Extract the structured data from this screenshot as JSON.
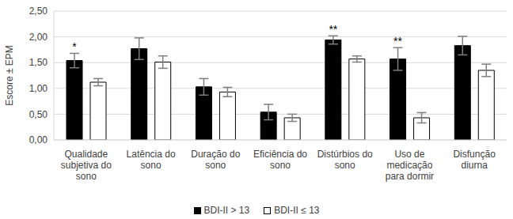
{
  "chart_data": {
    "type": "bar",
    "y_label": "Escore ± EPM",
    "categories": [
      "Qualidade subjetiva do sono",
      "Latência do sono",
      "Duração do sono",
      "Eficiência do sono",
      "Distúrbios do sono",
      "Uso de medicação para dormir",
      "Disfunção diurna"
    ],
    "series": [
      {
        "name": "BDI-II > 13",
        "color": "#000000",
        "values": [
          1.54,
          1.77,
          1.03,
          0.54,
          1.94,
          1.57,
          1.83
        ],
        "errors": [
          0.14,
          0.21,
          0.16,
          0.15,
          0.08,
          0.22,
          0.18
        ]
      },
      {
        "name": "BDI-II ≤ 13",
        "color": "#ffffff",
        "values": [
          1.12,
          1.51,
          0.93,
          0.43,
          1.57,
          0.43,
          1.35
        ],
        "errors": [
          0.07,
          0.12,
          0.09,
          0.07,
          0.06,
          0.1,
          0.12
        ]
      }
    ],
    "annotations": [
      {
        "category": "Qualidade subjetiva do sono",
        "text": "*"
      },
      {
        "category": "Distúrbios do sono",
        "text": "**"
      },
      {
        "category": "Uso de medicação para dormir",
        "text": "**"
      }
    ],
    "ylim": [
      0,
      2.5
    ],
    "yticks": [
      {
        "value": 0,
        "label": "0,00"
      },
      {
        "value": 0.5,
        "label": "0,50"
      },
      {
        "value": 1,
        "label": "1,00"
      },
      {
        "value": 1.5,
        "label": "1,50"
      },
      {
        "value": 2,
        "label": "2,00"
      },
      {
        "value": 2.5,
        "label": "2,50"
      }
    ],
    "grid": true,
    "legend": "bottom"
  }
}
